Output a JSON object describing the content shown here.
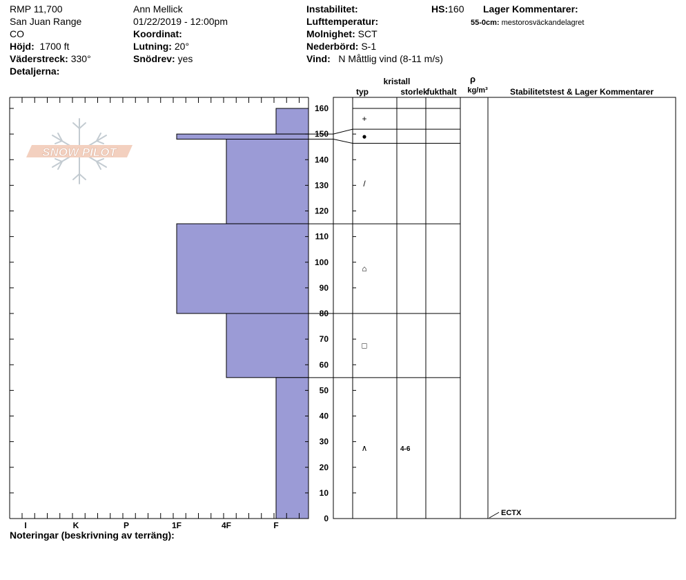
{
  "header": {
    "location_name": "RMP 11,700",
    "range": "San Juan Range",
    "state": "CO",
    "elevation_label": "Höjd:",
    "elevation_value": "1700 ft",
    "aspect_label": "Väderstreck:",
    "aspect_value": "330°",
    "details_label": "Detaljerna:",
    "observer": "Ann Mellick",
    "datetime": "01/22/2019 - 12:00pm",
    "coordinate_label": "Koordinat:",
    "slope_label": "Lutning:",
    "slope_value": "20°",
    "drift_label": "Snödrev:",
    "drift_value": "yes",
    "instability_label": "Instabilitet:",
    "air_temp_label": "Lufttemperatur:",
    "sky_label": "Molnighet:",
    "sky_value": "SCT",
    "precip_label": "Nederbörd:",
    "precip_value": "S-1",
    "wind_label": "Vind:",
    "wind_value": "N Måttlig vind (8-11 m/s)",
    "hs_label": "HS:",
    "hs_value": "160",
    "layer_comments_label": "Lager Kommentarer:",
    "layer_comment_depth": "55-0cm:",
    "layer_comment_text": "mestorosväckandelagret"
  },
  "logo_text": "SNOW PILOT",
  "columns": {
    "crystal_label": "kristall",
    "type_label": "typ",
    "size_label": "storlek",
    "moisture_label": "fukthalt",
    "density_symbol": "ρ",
    "density_unit": "kg/m³",
    "stability_label": "Stabilitetstest & Lager Kommentarer"
  },
  "footer": {
    "notes_label": "Noteringar (beskrivning av terräng):"
  },
  "colors": {
    "hardness_fill": "#9b9bd6",
    "hardness_stroke": "#000000"
  },
  "chart_data": {
    "type": "snow-profile",
    "hardness_axis": [
      "I",
      "K",
      "P",
      "1F",
      "4F",
      "F"
    ],
    "depth_range": [
      0,
      160
    ],
    "depth_ticks": [
      0,
      10,
      20,
      30,
      40,
      50,
      60,
      70,
      80,
      90,
      100,
      110,
      120,
      130,
      140,
      150,
      160
    ],
    "hardness_layers": [
      {
        "top": 160,
        "bottom": 150,
        "hardness": "F"
      },
      {
        "top": 150,
        "bottom": 148,
        "hardness": "1F"
      },
      {
        "top": 148,
        "bottom": 115,
        "hardness": "4F"
      },
      {
        "top": 115,
        "bottom": 80,
        "hardness": "1F"
      },
      {
        "top": 80,
        "bottom": 55,
        "hardness": "4F"
      },
      {
        "top": 55,
        "bottom": 0,
        "hardness": "F"
      }
    ],
    "layer_boundaries": [
      160,
      150,
      148,
      115,
      80,
      55,
      0
    ],
    "layers": [
      {
        "top": 160,
        "bottom": 150,
        "crystal": "precipitation-particles",
        "glyph": "+",
        "size": ""
      },
      {
        "top": 150,
        "bottom": 148,
        "crystal": "melt-freeze-crust",
        "glyph": "●",
        "size": ""
      },
      {
        "top": 148,
        "bottom": 115,
        "crystal": "decomposing-fragments",
        "glyph": "/",
        "size": ""
      },
      {
        "top": 115,
        "bottom": 80,
        "crystal": "rounded-faceted",
        "glyph": "⌂",
        "size": ""
      },
      {
        "top": 80,
        "bottom": 55,
        "crystal": "faceted-crystals",
        "glyph": "□",
        "size": ""
      },
      {
        "top": 55,
        "bottom": 0,
        "crystal": "depth-hoar",
        "glyph": "∧",
        "size": "4-6"
      }
    ],
    "stability_tests": [
      {
        "depth": 0,
        "label": "ECTX"
      }
    ]
  }
}
